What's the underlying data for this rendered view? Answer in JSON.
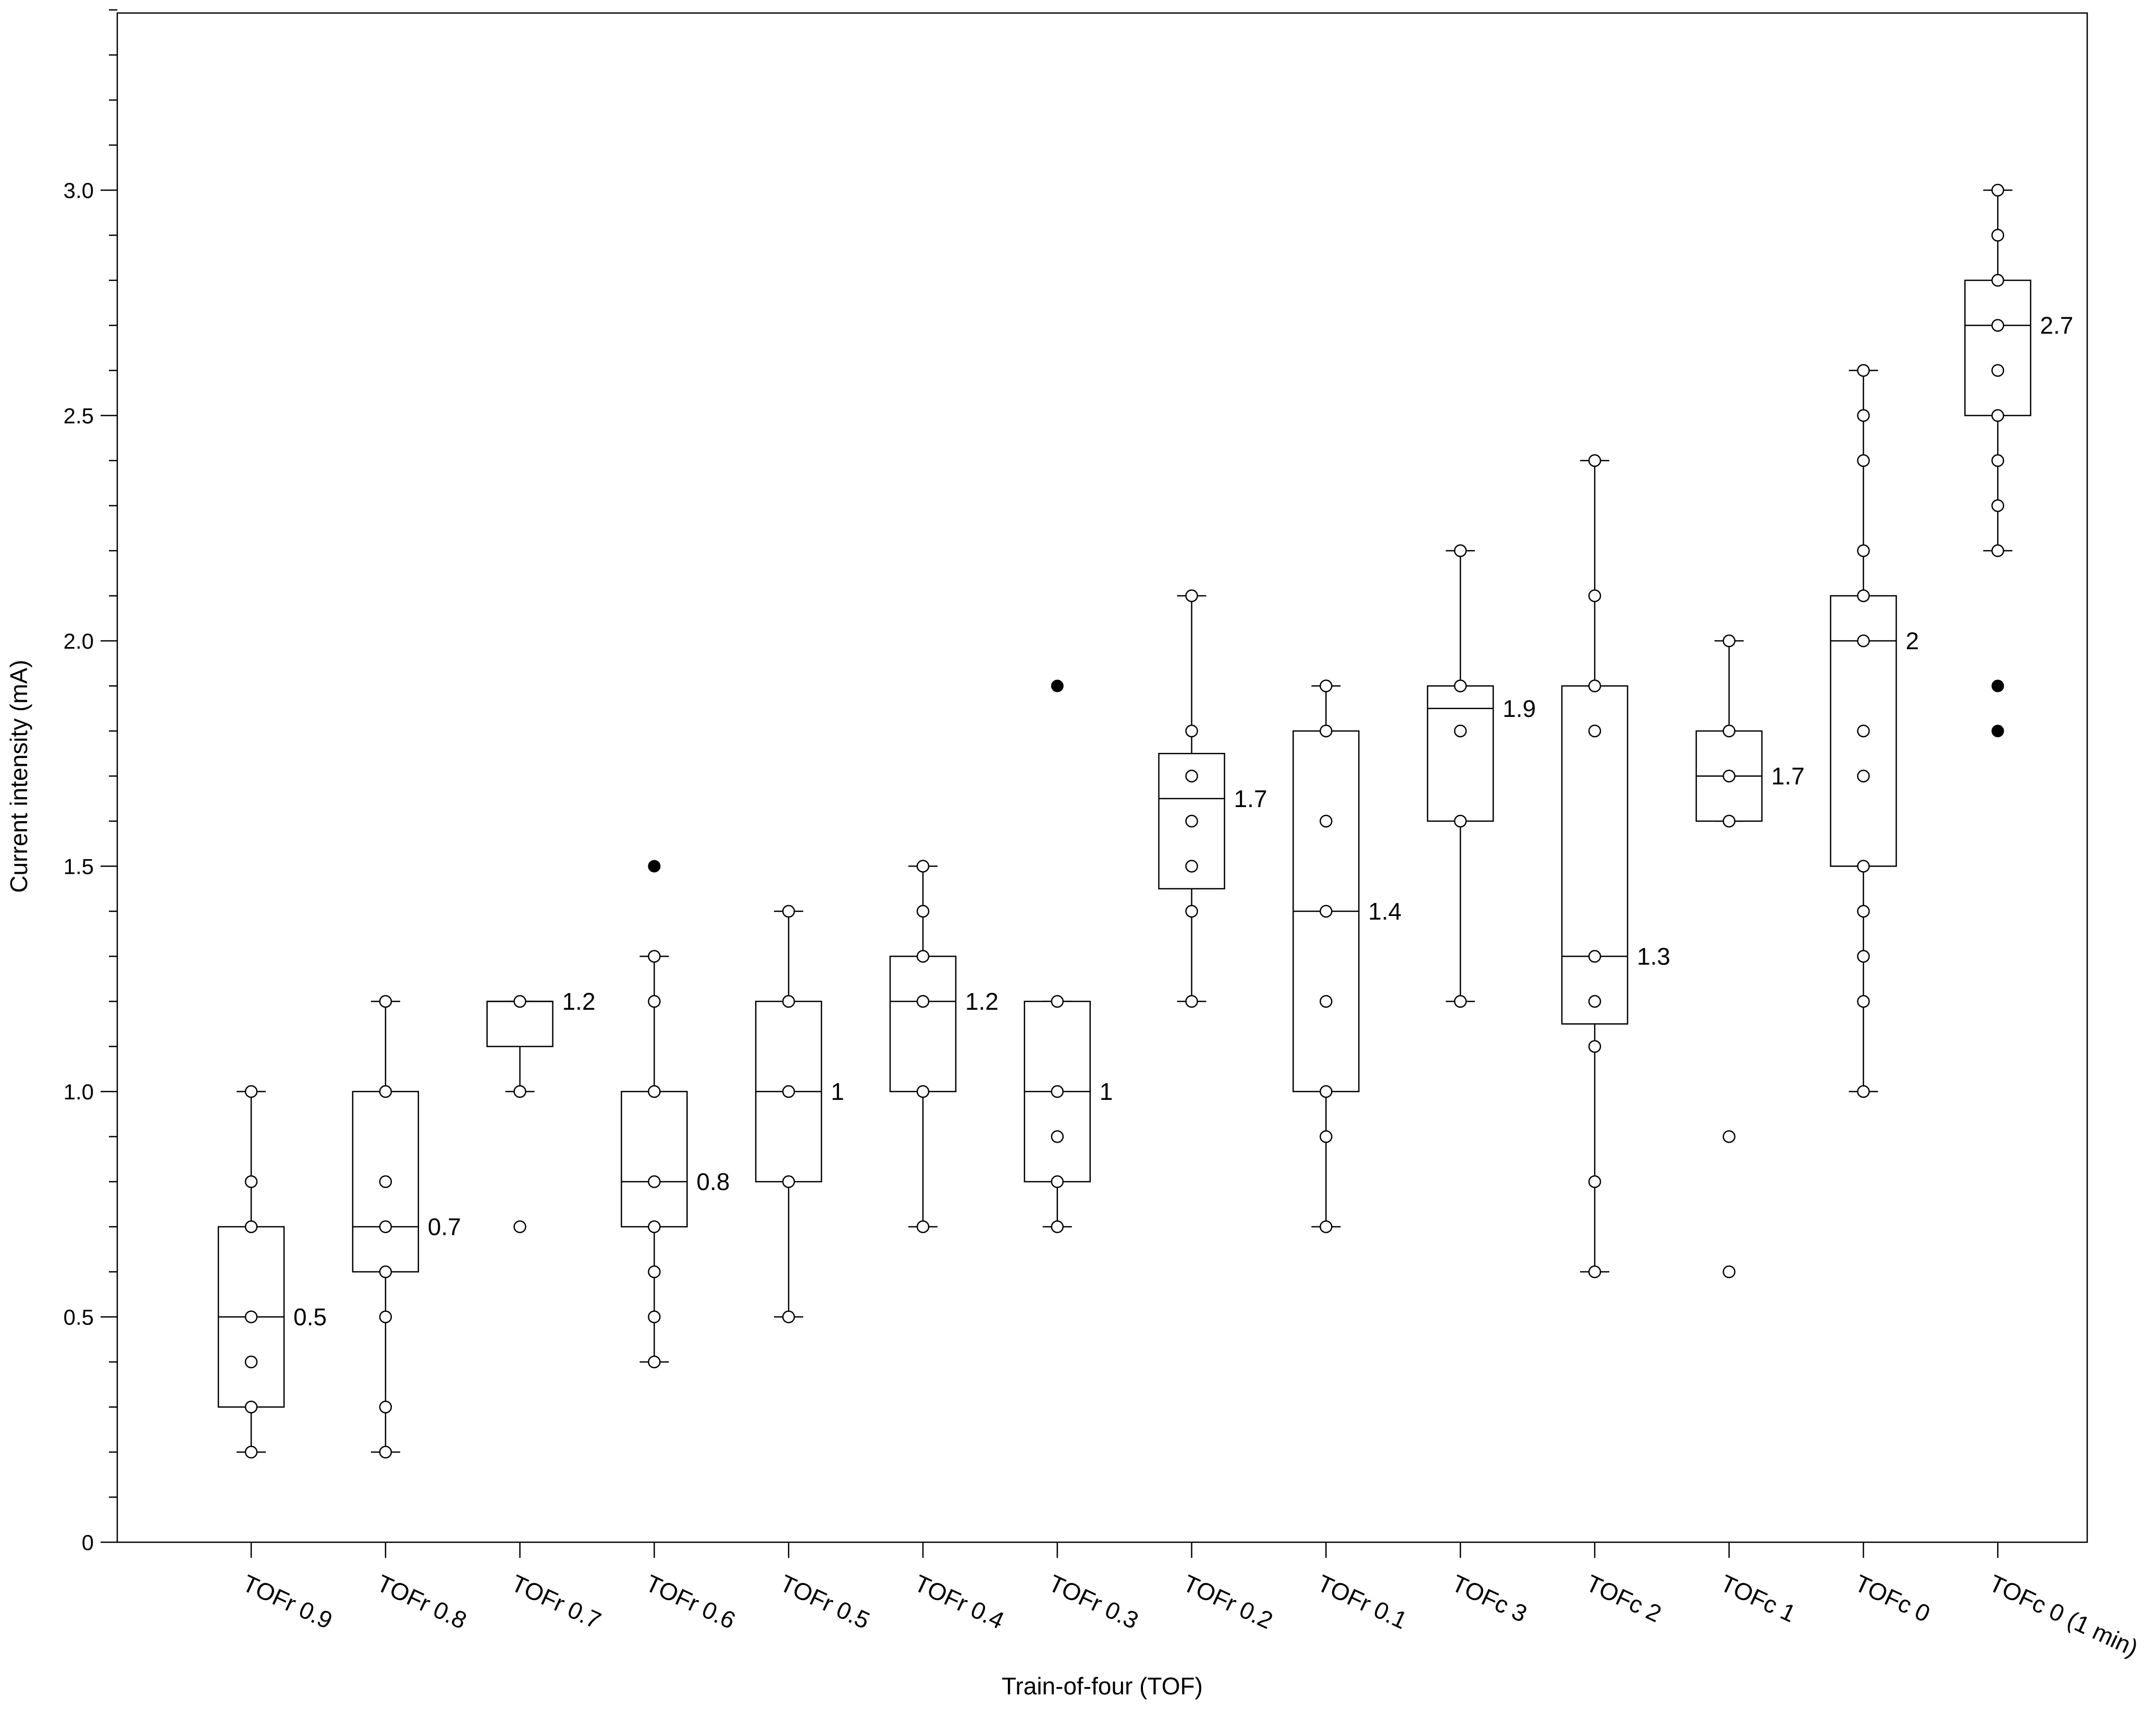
{
  "chart_data": {
    "type": "box",
    "title": "",
    "xlabel": "Train-of-four (TOF)",
    "ylabel": "Current intensity (mA)",
    "ylim": [
      0,
      3.4
    ],
    "yticks": [
      {
        "value": 0,
        "label": "0"
      },
      {
        "value": 0.5,
        "label": "0.5"
      },
      {
        "value": 1.0,
        "label": "1.0"
      },
      {
        "value": 1.5,
        "label": "1.5"
      },
      {
        "value": 2.0,
        "label": "2.0"
      },
      {
        "value": 2.5,
        "label": "2.5"
      },
      {
        "value": 3.0,
        "label": "3.0"
      }
    ],
    "groups": [
      {
        "label": "TOFr 0.9",
        "median": 0.5,
        "median_label": "0.5",
        "q1": 0.3,
        "q3": 0.7,
        "whisker_low": 0.2,
        "whisker_high": 1.0,
        "points": [
          0.2,
          0.3,
          0.4,
          0.5,
          0.7,
          0.8,
          1.0
        ],
        "outliers": []
      },
      {
        "label": "TOFr 0.8",
        "median": 0.7,
        "median_label": "0.7",
        "q1": 0.6,
        "q3": 1.0,
        "whisker_low": 0.2,
        "whisker_high": 1.2,
        "points": [
          0.2,
          0.3,
          0.5,
          0.6,
          0.7,
          0.8,
          1.0,
          1.2
        ],
        "outliers": []
      },
      {
        "label": "TOFr 0.7",
        "median": 1.2,
        "median_label": "1.2",
        "q1": 1.1,
        "q3": 1.2,
        "whisker_low": 1.0,
        "whisker_high": 1.2,
        "points": [
          0.7,
          1.0,
          1.2
        ],
        "outliers": []
      },
      {
        "label": "TOFr 0.6",
        "median": 0.8,
        "median_label": "0.8",
        "q1": 0.7,
        "q3": 1.0,
        "whisker_low": 0.4,
        "whisker_high": 1.3,
        "points": [
          0.4,
          0.5,
          0.6,
          0.7,
          0.8,
          1.0,
          1.2,
          1.3
        ],
        "outliers": [
          1.5
        ]
      },
      {
        "label": "TOFr 0.5",
        "median": 1.0,
        "median_label": "1",
        "q1": 0.8,
        "q3": 1.2,
        "whisker_low": 0.5,
        "whisker_high": 1.4,
        "points": [
          0.5,
          0.8,
          1.0,
          1.2,
          1.4
        ],
        "outliers": []
      },
      {
        "label": "TOFr 0.4",
        "median": 1.2,
        "median_label": "1.2",
        "q1": 1.0,
        "q3": 1.3,
        "whisker_low": 0.7,
        "whisker_high": 1.5,
        "points": [
          0.7,
          1.0,
          1.2,
          1.3,
          1.4,
          1.5
        ],
        "outliers": []
      },
      {
        "label": "TOFr 0.3",
        "median": 1.0,
        "median_label": "1",
        "q1": 0.8,
        "q3": 1.2,
        "whisker_low": 0.7,
        "whisker_high": 1.2,
        "points": [
          0.7,
          0.8,
          0.9,
          1.0,
          1.2
        ],
        "outliers": [
          1.9
        ]
      },
      {
        "label": "TOFr 0.2",
        "median": 1.65,
        "median_label": "1.7",
        "q1": 1.45,
        "q3": 1.75,
        "whisker_low": 1.2,
        "whisker_high": 2.1,
        "points": [
          1.2,
          1.4,
          1.5,
          1.6,
          1.7,
          1.8,
          2.1
        ],
        "outliers": []
      },
      {
        "label": "TOFr 0.1",
        "median": 1.4,
        "median_label": "1.4",
        "q1": 1.0,
        "q3": 1.8,
        "whisker_low": 0.7,
        "whisker_high": 1.9,
        "points": [
          0.7,
          0.9,
          1.0,
          1.2,
          1.4,
          1.6,
          1.8,
          1.9
        ],
        "outliers": []
      },
      {
        "label": "TOFc 3",
        "median": 1.85,
        "median_label": "1.9",
        "q1": 1.6,
        "q3": 1.9,
        "whisker_low": 1.2,
        "whisker_high": 2.2,
        "points": [
          1.2,
          1.6,
          1.8,
          1.9,
          2.2
        ],
        "outliers": []
      },
      {
        "label": "TOFc 2",
        "median": 1.3,
        "median_label": "1.3",
        "q1": 1.15,
        "q3": 1.9,
        "whisker_low": 0.6,
        "whisker_high": 2.4,
        "points": [
          0.6,
          0.8,
          1.1,
          1.2,
          1.3,
          1.8,
          1.9,
          2.1,
          2.4
        ],
        "outliers": []
      },
      {
        "label": "TOFc 1",
        "median": 1.7,
        "median_label": "1.7",
        "q1": 1.6,
        "q3": 1.8,
        "whisker_low": 1.6,
        "whisker_high": 2.0,
        "points": [
          0.6,
          0.9,
          1.6,
          1.7,
          1.8,
          2.0
        ],
        "outliers": []
      },
      {
        "label": "TOFc 0",
        "median": 2.0,
        "median_label": "2",
        "q1": 1.5,
        "q3": 2.1,
        "whisker_low": 1.0,
        "whisker_high": 2.6,
        "points": [
          1.0,
          1.2,
          1.3,
          1.4,
          1.5,
          1.7,
          1.8,
          2.0,
          2.1,
          2.2,
          2.4,
          2.5,
          2.6
        ],
        "outliers": []
      },
      {
        "label": "TOFc 0 (1 min)",
        "median": 2.7,
        "median_label": "2.7",
        "q1": 2.5,
        "q3": 2.8,
        "whisker_low": 2.2,
        "whisker_high": 3.0,
        "points": [
          2.2,
          2.3,
          2.4,
          2.5,
          2.6,
          2.7,
          2.8,
          2.9,
          3.0
        ],
        "outliers": [
          1.8,
          1.9
        ]
      }
    ]
  }
}
